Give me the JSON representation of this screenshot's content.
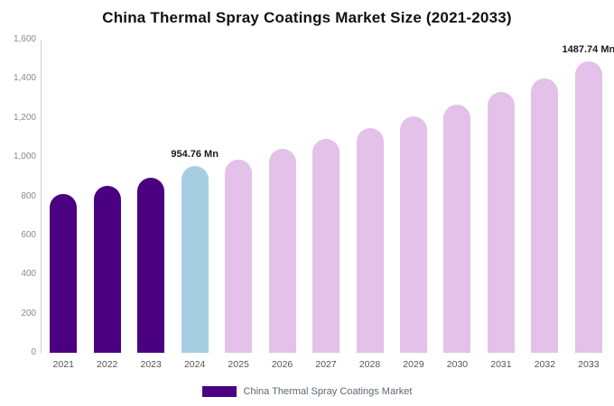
{
  "chart_data": {
    "type": "bar",
    "title": "China Thermal Spray Coatings Market Size (2021-2033)",
    "categories": [
      "2021",
      "2022",
      "2023",
      "2024",
      "2025",
      "2026",
      "2027",
      "2028",
      "2029",
      "2030",
      "2031",
      "2032",
      "2033"
    ],
    "values": [
      810,
      852,
      894,
      954.76,
      986,
      1041,
      1093,
      1149,
      1207,
      1269,
      1333,
      1403,
      1487.74
    ],
    "unit": "Mn",
    "ylim": [
      0,
      1600
    ],
    "ytick_labels": [
      "1,600",
      "1,400",
      "1,200",
      "1,000",
      "800",
      "600",
      "400",
      "200",
      "0"
    ],
    "grid": false,
    "legend_position": "bottom",
    "bar_colors": [
      "#4B0082",
      "#4B0082",
      "#4B0082",
      "#A6CEE3",
      "#E3C1E9",
      "#E3C1E9",
      "#E3C1E9",
      "#E3C1E9",
      "#E3C1E9",
      "#E3C1E9",
      "#E3C1E9",
      "#E3C1E9",
      "#E3C1E9"
    ],
    "data_labels": [
      {
        "index": 3,
        "text": "954.76 Mn"
      },
      {
        "index": 12,
        "text": "1487.74 Mn"
      }
    ],
    "legend": [
      {
        "label": "China Thermal Spray Coatings Market",
        "color": "#4B0082"
      }
    ]
  }
}
